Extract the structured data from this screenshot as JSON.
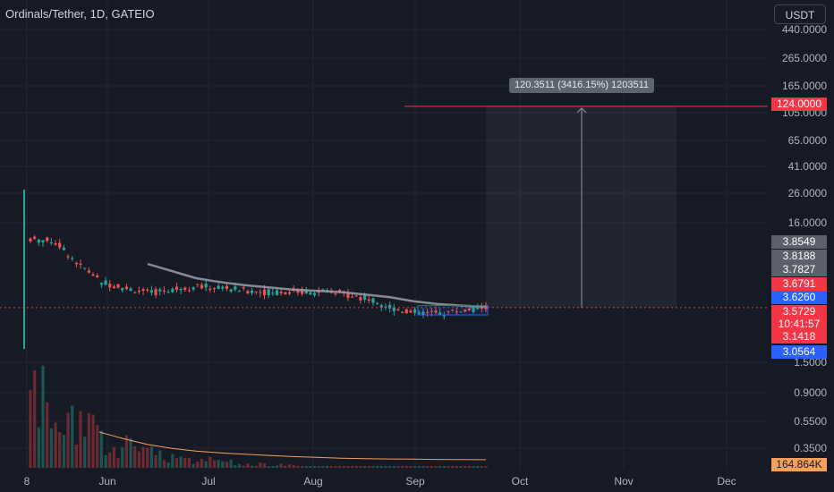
{
  "header": {
    "title": "Ordinals/Tether, 1D, GATEIO",
    "currency_button": "USDT"
  },
  "y_axis": {
    "ticks": [
      "440.0000",
      "265.0000",
      "165.0000",
      "105.0000",
      "65.0000",
      "41.0000",
      "26.0000",
      "16.0000",
      "1.5000",
      "0.9000",
      "0.5500",
      "0.3500"
    ]
  },
  "x_axis": {
    "ticks": [
      "8",
      "Jun",
      "Jul",
      "Aug",
      "Sep",
      "Oct",
      "Nov",
      "Dec"
    ]
  },
  "price_badges": [
    {
      "text": "124.0000",
      "color": "#f23645"
    },
    {
      "text": "3.8549",
      "color": "#5d606b"
    },
    {
      "text": "3.8188",
      "color": "#5d606b"
    },
    {
      "text": "3.7827",
      "color": "#5d606b"
    },
    {
      "text": "3.6791",
      "color": "#f23645"
    },
    {
      "text": "3.6260",
      "color": "#2962ff"
    },
    {
      "text": "3.5729",
      "color": "#f23645"
    },
    {
      "text": "10:41:57",
      "color": "#f23645"
    },
    {
      "text": "3.1418",
      "color": "#f23645"
    },
    {
      "text": "3.0564",
      "color": "#2962ff"
    }
  ],
  "volume_badge": {
    "text": "164.864K",
    "color": "#f6a05b"
  },
  "measure_label": "120.3511 (3416.15%) 1203511",
  "chart_data": {
    "type": "candlestick",
    "scale": "log",
    "ylim": [
      0.3,
      480
    ],
    "x": [
      "May 8",
      "May 15",
      "May 22",
      "May 29",
      "Jun 5",
      "Jun 12",
      "Jun 19",
      "Jun 26",
      "Jul 3",
      "Jul 10",
      "Jul 17",
      "Jul 24",
      "Jul 31",
      "Aug 7",
      "Aug 14",
      "Aug 21",
      "Aug 28",
      "Sep 4",
      "Sep 11",
      "Sep 18"
    ],
    "price": [
      12.0,
      11.5,
      7.6,
      5.6,
      5.0,
      4.6,
      5.0,
      5.2,
      5.1,
      4.8,
      4.7,
      4.8,
      4.7,
      4.6,
      4.2,
      3.6,
      3.3,
      3.2,
      3.4,
      3.57
    ],
    "moving_average": [
      null,
      null,
      null,
      null,
      null,
      7.7,
      6.8,
      6.0,
      5.6,
      5.3,
      5.1,
      4.9,
      4.8,
      4.7,
      4.5,
      4.3,
      4.0,
      3.8,
      3.7,
      3.62
    ],
    "volume_avg_k": [
      null,
      null,
      null,
      900,
      600,
      420,
      330,
      280,
      250,
      230,
      215,
      200,
      190,
      180,
      175,
      172,
      170,
      168,
      166,
      164.864
    ],
    "target_line": 124.0,
    "current_price": 3.5729
  }
}
